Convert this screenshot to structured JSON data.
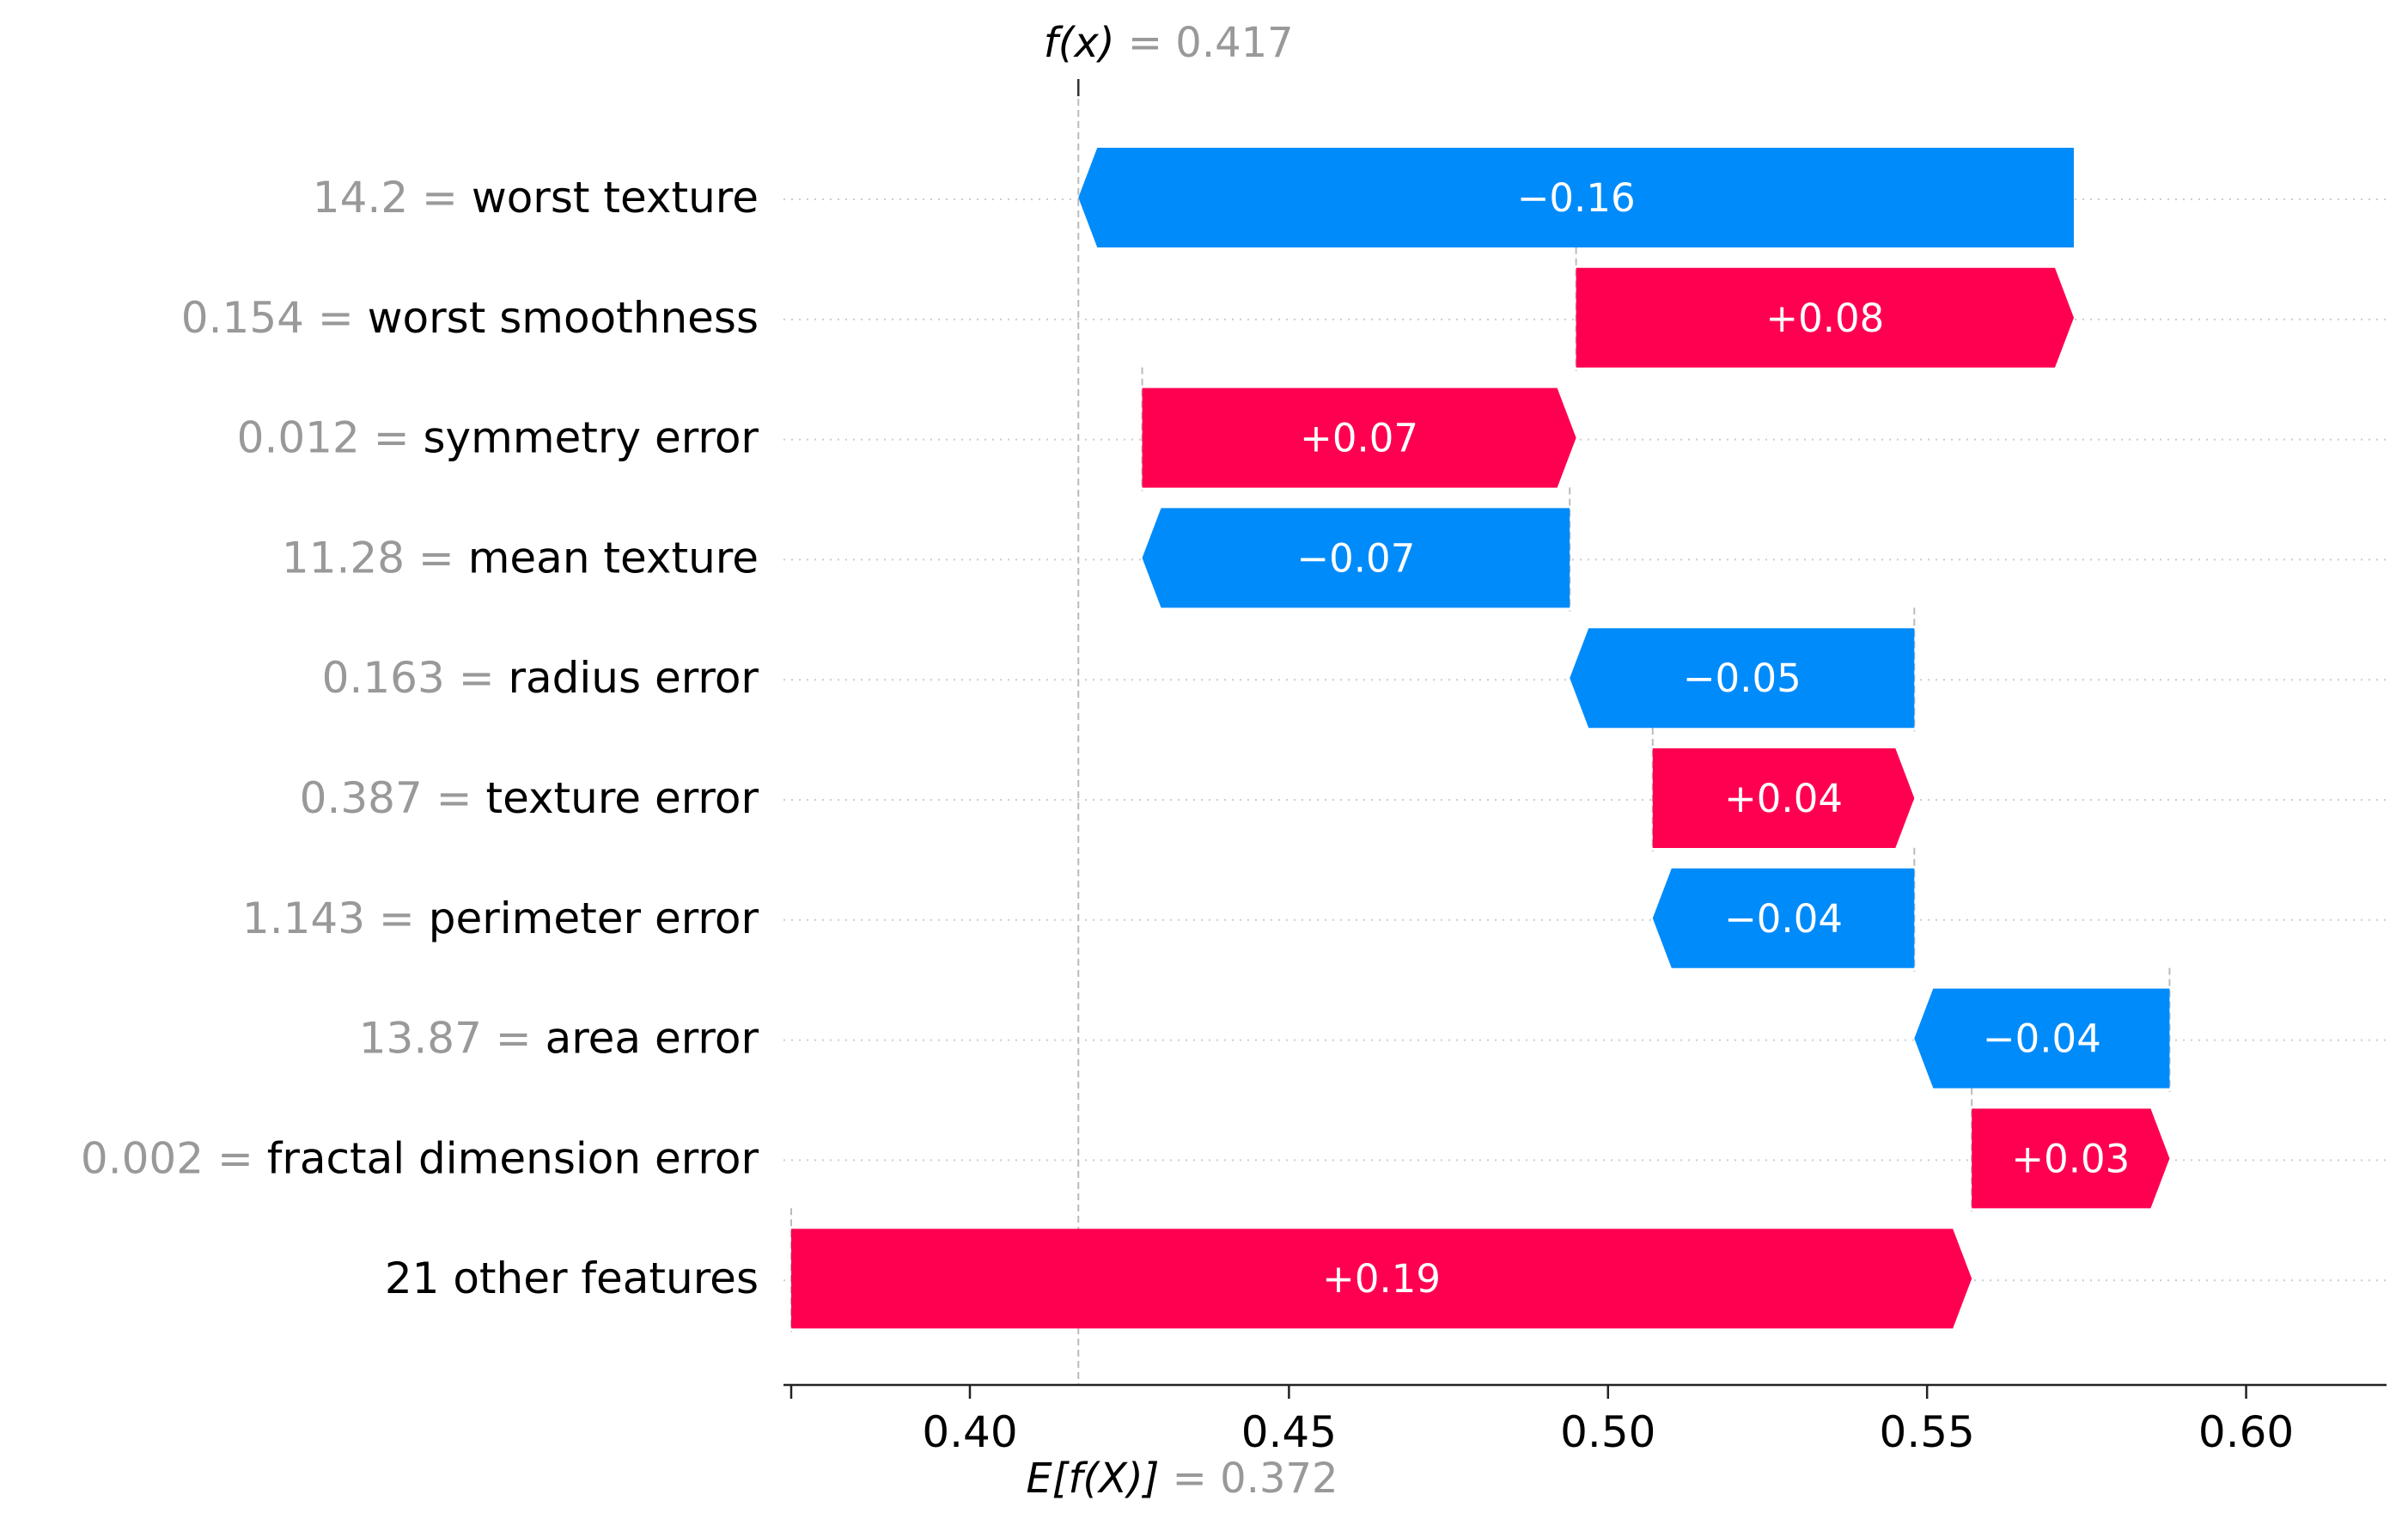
{
  "chart_data": {
    "type": "waterfall",
    "fx_label": "f(x)",
    "fx_value": "0.417",
    "ex_label": "E[f(X)]",
    "ex_value": "0.372",
    "fx": 0.417,
    "ex": 0.372,
    "xlim": [
      0.372,
      0.622
    ],
    "x_ticks": [
      0.4,
      0.45,
      0.5,
      0.55,
      0.6
    ],
    "x_tick_labels": [
      "0.40",
      "0.45",
      "0.50",
      "0.55",
      "0.60"
    ],
    "colors": {
      "positive": "#ff0051",
      "negative": "#008bfb",
      "feature_value": "#999999",
      "feature_name": "#000000",
      "grid": "#cccccc"
    },
    "rows": [
      {
        "value": "14.2",
        "feature": "worst texture",
        "start": 0.573,
        "end": 0.417,
        "label": "−0.16"
      },
      {
        "value": "0.154",
        "feature": "worst smoothness",
        "start": 0.495,
        "end": 0.573,
        "label": "+0.08"
      },
      {
        "value": "0.012",
        "feature": "symmetry error",
        "start": 0.427,
        "end": 0.495,
        "label": "+0.07"
      },
      {
        "value": "11.28",
        "feature": "mean texture",
        "start": 0.494,
        "end": 0.427,
        "label": "−0.07"
      },
      {
        "value": "0.163",
        "feature": "radius error",
        "start": 0.548,
        "end": 0.494,
        "label": "−0.05"
      },
      {
        "value": "0.387",
        "feature": "texture error",
        "start": 0.507,
        "end": 0.548,
        "label": "+0.04"
      },
      {
        "value": "1.143",
        "feature": "perimeter error",
        "start": 0.548,
        "end": 0.507,
        "label": "−0.04"
      },
      {
        "value": "13.87",
        "feature": "area error",
        "start": 0.588,
        "end": 0.548,
        "label": "−0.04"
      },
      {
        "value": "0.002",
        "feature": "fractal dimension error",
        "start": 0.557,
        "end": 0.588,
        "label": "+0.03"
      },
      {
        "value": "",
        "feature": "21 other features",
        "start": 0.372,
        "end": 0.557,
        "label": "+0.19"
      }
    ]
  }
}
